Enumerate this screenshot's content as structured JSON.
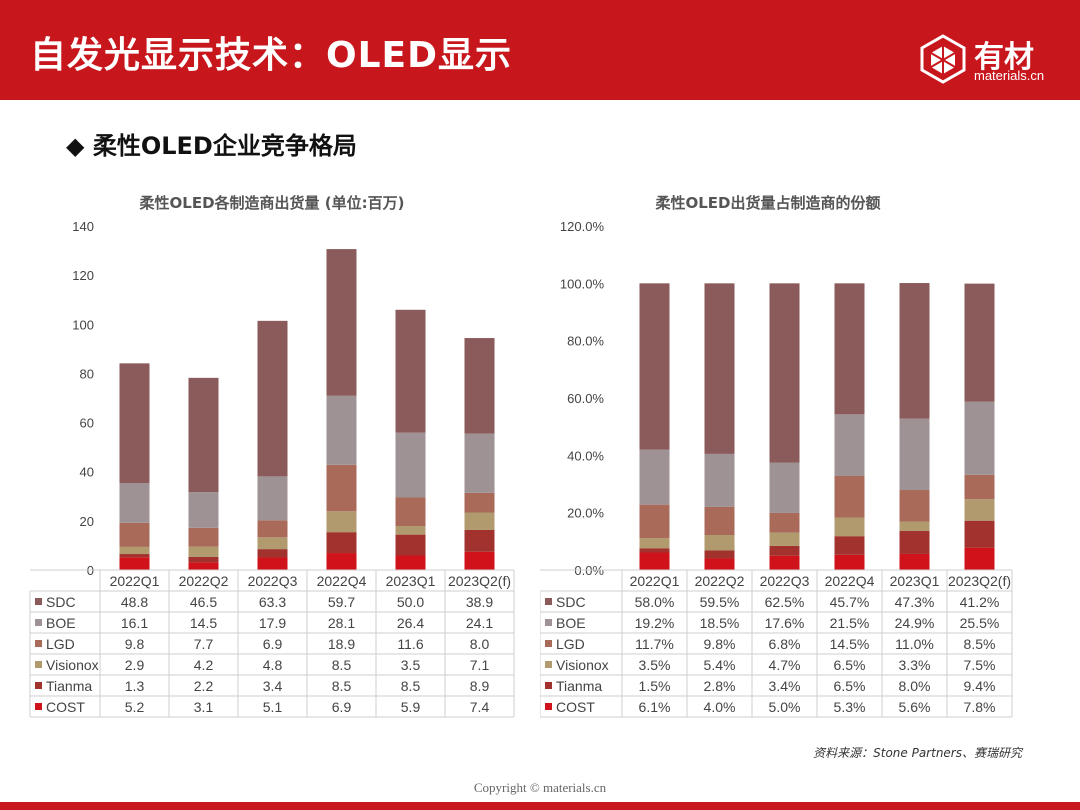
{
  "header": {
    "title": "自发光显示技术：OLED显示",
    "logo_text": "有材",
    "logo_sub": "materials.cn"
  },
  "section": {
    "bullet": "◆",
    "title": "柔性OLED企业竞争格局"
  },
  "colors": {
    "SDC": "#8b5a5a",
    "BOE": "#9e9294",
    "LGD": "#a96a5a",
    "Visionox": "#b09a6e",
    "Tianma": "#a1322d",
    "COST": "#d0121a",
    "brand": "#c8161d"
  },
  "chart_data": [
    {
      "type": "bar",
      "stacked": true,
      "title": "柔性OLED各制造商出货量 (单位:百万)",
      "categories": [
        "2022Q1",
        "2022Q2",
        "2022Q3",
        "2022Q4",
        "2023Q1",
        "2023Q2(f)"
      ],
      "ylim": [
        0,
        140
      ],
      "yticks": [
        "0",
        "20",
        "40",
        "60",
        "80",
        "100",
        "120",
        "140"
      ],
      "series": [
        {
          "name": "SDC",
          "values": [
            48.8,
            46.5,
            63.3,
            59.7,
            50.0,
            38.9
          ],
          "labels": [
            "48.8",
            "46.5",
            "63.3",
            "59.7",
            "50.0",
            "38.9"
          ]
        },
        {
          "name": "BOE",
          "values": [
            16.1,
            14.5,
            17.9,
            28.1,
            26.4,
            24.1
          ],
          "labels": [
            "16.1",
            "14.5",
            "17.9",
            "28.1",
            "26.4",
            "24.1"
          ]
        },
        {
          "name": "LGD",
          "values": [
            9.8,
            7.7,
            6.9,
            18.9,
            11.6,
            8.0
          ],
          "labels": [
            "9.8",
            "7.7",
            "6.9",
            "18.9",
            "11.6",
            "8.0"
          ]
        },
        {
          "name": "Visionox",
          "values": [
            2.9,
            4.2,
            4.8,
            8.5,
            3.5,
            7.1
          ],
          "labels": [
            "2.9",
            "4.2",
            "4.8",
            "8.5",
            "3.5",
            "7.1"
          ]
        },
        {
          "name": "Tianma",
          "values": [
            1.3,
            2.2,
            3.4,
            8.5,
            8.5,
            8.9
          ],
          "labels": [
            "1.3",
            "2.2",
            "3.4",
            "8.5",
            "8.5",
            "8.9"
          ]
        },
        {
          "name": "COST",
          "values": [
            5.2,
            3.1,
            5.1,
            6.9,
            5.9,
            7.4
          ],
          "labels": [
            "5.2",
            "3.1",
            "5.1",
            "6.9",
            "5.9",
            "7.4"
          ]
        }
      ],
      "grid": false,
      "legend": "data-table"
    },
    {
      "type": "bar",
      "stacked": true,
      "title": "柔性OLED出货量占制造商的份额",
      "categories": [
        "2022Q1",
        "2022Q2",
        "2022Q3",
        "2022Q4",
        "2023Q1",
        "2023Q2(f)"
      ],
      "ylim": [
        0,
        120
      ],
      "yticks": [
        "0.0%",
        "20.0%",
        "40.0%",
        "60.0%",
        "80.0%",
        "100.0%",
        "120.0%"
      ],
      "series": [
        {
          "name": "SDC",
          "values": [
            58.0,
            59.5,
            62.5,
            45.7,
            47.3,
            41.2
          ],
          "labels": [
            "58.0%",
            "59.5%",
            "62.5%",
            "45.7%",
            "47.3%",
            "41.2%"
          ]
        },
        {
          "name": "BOE",
          "values": [
            19.2,
            18.5,
            17.6,
            21.5,
            24.9,
            25.5
          ],
          "labels": [
            "19.2%",
            "18.5%",
            "17.6%",
            "21.5%",
            "24.9%",
            "25.5%"
          ]
        },
        {
          "name": "LGD",
          "values": [
            11.7,
            9.8,
            6.8,
            14.5,
            11.0,
            8.5
          ],
          "labels": [
            "11.7%",
            "9.8%",
            "6.8%",
            "14.5%",
            "11.0%",
            "8.5%"
          ]
        },
        {
          "name": "Visionox",
          "values": [
            3.5,
            5.4,
            4.7,
            6.5,
            3.3,
            7.5
          ],
          "labels": [
            "3.5%",
            "5.4%",
            "4.7%",
            "6.5%",
            "3.3%",
            "7.5%"
          ]
        },
        {
          "name": "Tianma",
          "values": [
            1.5,
            2.8,
            3.4,
            6.5,
            8.0,
            9.4
          ],
          "labels": [
            "1.5%",
            "2.8%",
            "3.4%",
            "6.5%",
            "8.0%",
            "9.4%"
          ]
        },
        {
          "name": "COST",
          "values": [
            6.1,
            4.0,
            5.0,
            5.3,
            5.6,
            7.8
          ],
          "labels": [
            "6.1%",
            "4.0%",
            "5.0%",
            "5.3%",
            "5.6%",
            "7.8%"
          ]
        }
      ],
      "grid": false,
      "legend": "data-table"
    }
  ],
  "source": "资料来源：Stone Partners、赛瑞研究",
  "copyright": "Copyright © materials.cn"
}
